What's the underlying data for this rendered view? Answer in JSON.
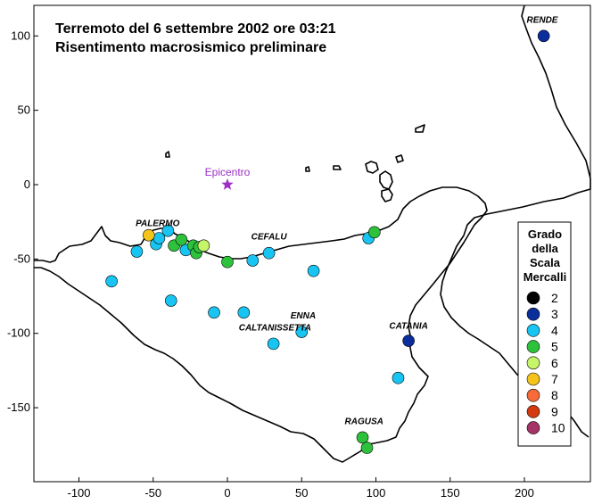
{
  "title": {
    "line1": "Terremoto del 6 settembre 2002 ore 03:21",
    "line2": "Risentimento macrosismico preliminare"
  },
  "axes": {
    "x_ticks": [
      "-100",
      "-50",
      "0",
      "50",
      "100",
      "150",
      "200"
    ],
    "y_ticks": [
      "100",
      "50",
      "0",
      "-50",
      "-100",
      "-150"
    ]
  },
  "epicentro": {
    "label": "Epicentro",
    "x": 0,
    "y": 0,
    "color": "#9b2fc6"
  },
  "places": [
    {
      "name": "RENDE",
      "x": 212,
      "y": 109
    },
    {
      "name": "PALERMO",
      "x": -47,
      "y": -28
    },
    {
      "name": "CEFALU",
      "x": 28,
      "y": -37
    },
    {
      "name": "ENNA",
      "x": 51,
      "y": -90
    },
    {
      "name": "CALTANISSETTA",
      "x": 32,
      "y": -98
    },
    {
      "name": "CATANIA",
      "x": 122,
      "y": -97
    },
    {
      "name": "RAGUSA",
      "x": 92,
      "y": -161
    }
  ],
  "legend": {
    "title": [
      "Grado",
      "della",
      "Scala",
      "Mercalli"
    ],
    "items": [
      {
        "label": "2",
        "color": "#000000"
      },
      {
        "label": "3",
        "color": "#0a2e9c"
      },
      {
        "label": "4",
        "color": "#18c5f2"
      },
      {
        "label": "5",
        "color": "#2ec23c"
      },
      {
        "label": "6",
        "color": "#c7f56a"
      },
      {
        "label": "7",
        "color": "#f5c41a"
      },
      {
        "label": "8",
        "color": "#f86a3a"
      },
      {
        "label": "9",
        "color": "#d43a10"
      },
      {
        "label": "10",
        "color": "#a33465"
      }
    ]
  },
  "observations": [
    {
      "x": 213,
      "y": 100,
      "intensity": 3
    },
    {
      "x": 122,
      "y": -105,
      "intensity": 3
    },
    {
      "x": -78,
      "y": -65,
      "intensity": 4
    },
    {
      "x": -61,
      "y": -45,
      "intensity": 4
    },
    {
      "x": -48,
      "y": -40,
      "intensity": 4
    },
    {
      "x": -46,
      "y": -36,
      "intensity": 4
    },
    {
      "x": -40,
      "y": -31,
      "intensity": 4
    },
    {
      "x": -28,
      "y": -44,
      "intensity": 4
    },
    {
      "x": -38,
      "y": -78,
      "intensity": 4
    },
    {
      "x": -9,
      "y": -86,
      "intensity": 4
    },
    {
      "x": 11,
      "y": -86,
      "intensity": 4
    },
    {
      "x": 17,
      "y": -51,
      "intensity": 4
    },
    {
      "x": 28,
      "y": -46,
      "intensity": 4
    },
    {
      "x": 58,
      "y": -58,
      "intensity": 4
    },
    {
      "x": 50,
      "y": -99,
      "intensity": 4
    },
    {
      "x": 31,
      "y": -107,
      "intensity": 4
    },
    {
      "x": 115,
      "y": -130,
      "intensity": 4
    },
    {
      "x": 95,
      "y": -36,
      "intensity": 4
    },
    {
      "x": -36,
      "y": -41,
      "intensity": 5
    },
    {
      "x": -31,
      "y": -37,
      "intensity": 5
    },
    {
      "x": -23,
      "y": -41,
      "intensity": 5
    },
    {
      "x": -21,
      "y": -46,
      "intensity": 5
    },
    {
      "x": -19,
      "y": -42,
      "intensity": 5
    },
    {
      "x": 0,
      "y": -52,
      "intensity": 5
    },
    {
      "x": 99,
      "y": -32,
      "intensity": 5
    },
    {
      "x": 91,
      "y": -170,
      "intensity": 5
    },
    {
      "x": 94,
      "y": -177,
      "intensity": 5
    },
    {
      "x": -16,
      "y": -41,
      "intensity": 6
    },
    {
      "x": -53,
      "y": -34,
      "intensity": 7
    }
  ]
}
